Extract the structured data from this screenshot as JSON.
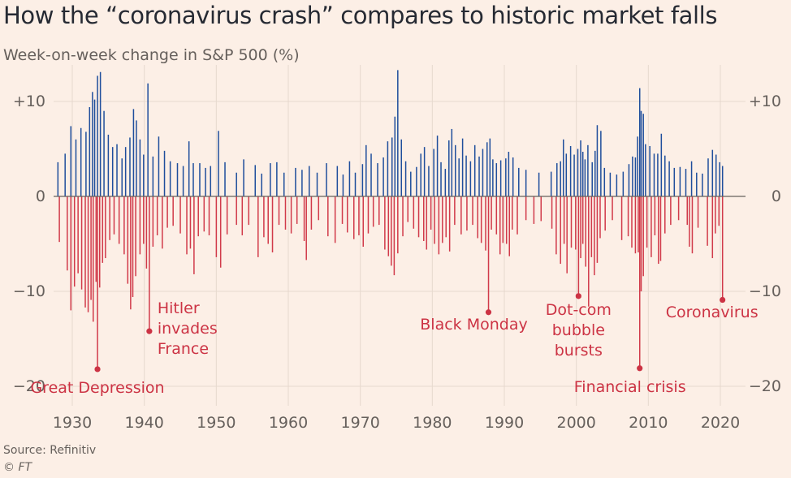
{
  "title": "How the “coronavirus crash” compares to historic market falls",
  "subtitle": "Week-on-week change in S&P 500 (%)",
  "source": "Source: Refinitiv",
  "credit": "© FT",
  "colors": {
    "background": "#fcefe6",
    "positive": "#1f4e9c",
    "negative": "#d13a4a",
    "annotation": "#cc3344",
    "grid": "#e6d9ce",
    "axis": "#66605c"
  },
  "chart_data": {
    "type": "bar",
    "xlim": [
      1927,
      2022
    ],
    "ylim": [
      -22,
      14
    ],
    "x_ticks": [
      1930,
      1940,
      1950,
      1960,
      1970,
      1980,
      1990,
      2000,
      2010,
      2020
    ],
    "x_tick_labels": [
      "1930",
      "1940",
      "1950",
      "1960",
      "1970",
      "1980",
      "1990",
      "2000",
      "2010",
      "2020"
    ],
    "y_ticks": [
      10,
      0,
      -10,
      -20
    ],
    "y_tick_labels": [
      "+10",
      "0",
      "−10",
      "−20"
    ],
    "grid": true,
    "series": [
      {
        "color": "positive",
        "values": [
          [
            1928.0,
            3.6
          ],
          [
            1929.0,
            4.5
          ],
          [
            1929.8,
            7.4
          ],
          [
            1930.5,
            6.0
          ],
          [
            1931.2,
            7.2
          ],
          [
            1931.9,
            6.8
          ],
          [
            1932.4,
            9.4
          ],
          [
            1932.8,
            11.0
          ],
          [
            1933.1,
            10.2
          ],
          [
            1933.5,
            12.7
          ],
          [
            1933.9,
            13.1
          ],
          [
            1934.4,
            9.0
          ],
          [
            1935.0,
            6.5
          ],
          [
            1935.6,
            5.2
          ],
          [
            1936.2,
            5.5
          ],
          [
            1936.9,
            4.0
          ],
          [
            1937.4,
            5.2
          ],
          [
            1938.0,
            6.2
          ],
          [
            1938.5,
            9.2
          ],
          [
            1938.9,
            8.0
          ],
          [
            1939.4,
            6.0
          ],
          [
            1939.9,
            4.4
          ],
          [
            1940.5,
            11.9
          ],
          [
            1941.2,
            4.2
          ],
          [
            1942.0,
            6.3
          ],
          [
            1942.8,
            4.8
          ],
          [
            1943.6,
            3.7
          ],
          [
            1944.6,
            3.5
          ],
          [
            1945.4,
            3.2
          ],
          [
            1946.2,
            5.8
          ],
          [
            1946.8,
            3.5
          ],
          [
            1947.7,
            3.5
          ],
          [
            1948.5,
            3.0
          ],
          [
            1949.2,
            3.2
          ],
          [
            1950.3,
            6.9
          ],
          [
            1951.2,
            3.6
          ],
          [
            1952.8,
            2.5
          ],
          [
            1953.8,
            3.9
          ],
          [
            1955.4,
            3.3
          ],
          [
            1956.3,
            2.4
          ],
          [
            1957.5,
            3.5
          ],
          [
            1958.4,
            3.6
          ],
          [
            1959.4,
            2.5
          ],
          [
            1961.0,
            3.0
          ],
          [
            1961.9,
            2.8
          ],
          [
            1962.9,
            3.2
          ],
          [
            1964.0,
            2.5
          ],
          [
            1965.3,
            3.5
          ],
          [
            1966.8,
            3.2
          ],
          [
            1967.6,
            2.3
          ],
          [
            1968.5,
            3.7
          ],
          [
            1969.3,
            2.5
          ],
          [
            1970.3,
            3.4
          ],
          [
            1970.8,
            5.4
          ],
          [
            1971.5,
            4.5
          ],
          [
            1972.4,
            3.5
          ],
          [
            1973.2,
            4.1
          ],
          [
            1973.8,
            5.8
          ],
          [
            1974.4,
            6.2
          ],
          [
            1974.8,
            8.4
          ],
          [
            1975.2,
            13.3
          ],
          [
            1975.7,
            6.0
          ],
          [
            1976.3,
            3.7
          ],
          [
            1977.0,
            2.6
          ],
          [
            1977.8,
            3.1
          ],
          [
            1978.4,
            4.5
          ],
          [
            1978.9,
            5.2
          ],
          [
            1979.5,
            3.2
          ],
          [
            1980.2,
            5.0
          ],
          [
            1980.7,
            6.4
          ],
          [
            1981.2,
            3.6
          ],
          [
            1981.8,
            2.9
          ],
          [
            1982.3,
            5.9
          ],
          [
            1982.7,
            7.1
          ],
          [
            1983.2,
            5.4
          ],
          [
            1983.7,
            4.0
          ],
          [
            1984.2,
            6.1
          ],
          [
            1984.7,
            4.3
          ],
          [
            1985.3,
            3.7
          ],
          [
            1985.9,
            5.4
          ],
          [
            1986.5,
            4.2
          ],
          [
            1987.0,
            5.0
          ],
          [
            1987.6,
            5.7
          ],
          [
            1988.0,
            6.1
          ],
          [
            1988.4,
            3.9
          ],
          [
            1988.9,
            3.5
          ],
          [
            1989.5,
            3.8
          ],
          [
            1990.2,
            4.0
          ],
          [
            1990.6,
            4.7
          ],
          [
            1991.2,
            4.1
          ],
          [
            1992.0,
            3.0
          ],
          [
            1993.0,
            2.8
          ],
          [
            1994.8,
            2.5
          ],
          [
            1996.5,
            2.6
          ],
          [
            1997.3,
            3.5
          ],
          [
            1997.8,
            3.7
          ],
          [
            1998.2,
            6.0
          ],
          [
            1998.6,
            4.5
          ],
          [
            1999.2,
            5.3
          ],
          [
            1999.7,
            4.4
          ],
          [
            2000.2,
            5.0
          ],
          [
            2000.6,
            5.9
          ],
          [
            2000.9,
            4.7
          ],
          [
            2001.2,
            3.9
          ],
          [
            2001.6,
            5.4
          ],
          [
            2002.2,
            3.6
          ],
          [
            2002.6,
            4.8
          ],
          [
            2002.9,
            7.5
          ],
          [
            2003.4,
            6.9
          ],
          [
            2003.9,
            3.0
          ],
          [
            2004.7,
            2.5
          ],
          [
            2005.6,
            2.3
          ],
          [
            2006.5,
            2.6
          ],
          [
            2007.3,
            3.4
          ],
          [
            2007.8,
            4.2
          ],
          [
            2008.2,
            4.1
          ],
          [
            2008.5,
            6.3
          ],
          [
            2008.8,
            11.4
          ],
          [
            2009.0,
            9.0
          ],
          [
            2009.3,
            8.7
          ],
          [
            2009.6,
            5.5
          ],
          [
            2010.2,
            5.3
          ],
          [
            2010.8,
            4.5
          ],
          [
            2011.3,
            4.5
          ],
          [
            2011.8,
            6.6
          ],
          [
            2012.3,
            4.3
          ],
          [
            2012.9,
            3.7
          ],
          [
            2013.6,
            3.0
          ],
          [
            2014.4,
            3.1
          ],
          [
            2015.2,
            2.9
          ],
          [
            2016.0,
            3.7
          ],
          [
            2016.7,
            2.5
          ],
          [
            2017.5,
            2.4
          ],
          [
            2018.3,
            4.0
          ],
          [
            2018.9,
            4.9
          ],
          [
            2019.4,
            4.4
          ],
          [
            2019.9,
            3.6
          ],
          [
            2020.3,
            3.2
          ]
        ]
      },
      {
        "color": "negative",
        "values": [
          [
            1928.2,
            -4.8
          ],
          [
            1929.3,
            -7.8
          ],
          [
            1929.8,
            -12.0
          ],
          [
            1930.3,
            -9.5
          ],
          [
            1930.8,
            -8.1
          ],
          [
            1931.3,
            -9.8
          ],
          [
            1931.8,
            -11.7
          ],
          [
            1932.2,
            -12.2
          ],
          [
            1932.6,
            -10.9
          ],
          [
            1932.9,
            -13.2
          ],
          [
            1933.3,
            -9.0
          ],
          [
            1933.5,
            -18.2
          ],
          [
            1933.8,
            -9.6
          ],
          [
            1934.2,
            -7.0
          ],
          [
            1934.6,
            -6.5
          ],
          [
            1935.2,
            -4.6
          ],
          [
            1935.8,
            -4.0
          ],
          [
            1936.5,
            -5.0
          ],
          [
            1937.2,
            -6.1
          ],
          [
            1937.7,
            -9.2
          ],
          [
            1938.1,
            -11.9
          ],
          [
            1938.4,
            -10.6
          ],
          [
            1938.8,
            -8.4
          ],
          [
            1939.4,
            -6.1
          ],
          [
            1939.9,
            -5.0
          ],
          [
            1940.3,
            -7.6
          ],
          [
            1940.7,
            -14.2
          ],
          [
            1941.2,
            -5.3
          ],
          [
            1941.8,
            -4.1
          ],
          [
            1942.5,
            -5.5
          ],
          [
            1943.2,
            -3.3
          ],
          [
            1944.0,
            -3.1
          ],
          [
            1945.0,
            -3.9
          ],
          [
            1945.9,
            -6.1
          ],
          [
            1946.4,
            -5.5
          ],
          [
            1946.9,
            -8.2
          ],
          [
            1947.5,
            -4.2
          ],
          [
            1948.3,
            -3.7
          ],
          [
            1949.0,
            -4.1
          ],
          [
            1950.0,
            -6.4
          ],
          [
            1950.6,
            -7.5
          ],
          [
            1951.5,
            -4.0
          ],
          [
            1952.8,
            -3.0
          ],
          [
            1953.6,
            -4.1
          ],
          [
            1954.5,
            -3.0
          ],
          [
            1955.8,
            -6.4
          ],
          [
            1956.6,
            -4.3
          ],
          [
            1957.2,
            -5.0
          ],
          [
            1957.8,
            -5.9
          ],
          [
            1958.7,
            -3.0
          ],
          [
            1959.6,
            -3.5
          ],
          [
            1960.4,
            -3.9
          ],
          [
            1961.2,
            -2.9
          ],
          [
            1962.2,
            -4.7
          ],
          [
            1962.5,
            -6.7
          ],
          [
            1963.2,
            -3.5
          ],
          [
            1964.2,
            -2.5
          ],
          [
            1965.5,
            -4.2
          ],
          [
            1966.5,
            -4.9
          ],
          [
            1967.5,
            -2.9
          ],
          [
            1968.2,
            -3.8
          ],
          [
            1969.1,
            -4.5
          ],
          [
            1969.8,
            -4.1
          ],
          [
            1970.4,
            -5.3
          ],
          [
            1971.1,
            -3.9
          ],
          [
            1971.8,
            -3.2
          ],
          [
            1972.6,
            -3.0
          ],
          [
            1973.4,
            -5.6
          ],
          [
            1973.9,
            -6.3
          ],
          [
            1974.3,
            -7.3
          ],
          [
            1974.7,
            -8.3
          ],
          [
            1975.2,
            -6.0
          ],
          [
            1975.9,
            -4.2
          ],
          [
            1976.6,
            -2.7
          ],
          [
            1977.4,
            -3.4
          ],
          [
            1978.1,
            -4.3
          ],
          [
            1978.8,
            -4.7
          ],
          [
            1979.2,
            -5.6
          ],
          [
            1979.8,
            -3.5
          ],
          [
            1980.3,
            -5.0
          ],
          [
            1980.9,
            -6.1
          ],
          [
            1981.4,
            -4.9
          ],
          [
            1981.9,
            -4.3
          ],
          [
            1982.4,
            -5.8
          ],
          [
            1983.1,
            -3.0
          ],
          [
            1984.0,
            -4.0
          ],
          [
            1984.8,
            -3.6
          ],
          [
            1985.6,
            -3.0
          ],
          [
            1986.3,
            -4.4
          ],
          [
            1986.8,
            -4.9
          ],
          [
            1987.4,
            -5.7
          ],
          [
            1987.8,
            -12.2
          ],
          [
            1988.2,
            -3.5
          ],
          [
            1988.9,
            -4.0
          ],
          [
            1989.4,
            -6.1
          ],
          [
            1989.8,
            -4.9
          ],
          [
            1990.3,
            -5.0
          ],
          [
            1990.7,
            -6.3
          ],
          [
            1991.1,
            -3.5
          ],
          [
            1991.8,
            -4.0
          ],
          [
            1993.0,
            -2.5
          ],
          [
            1994.1,
            -2.9
          ],
          [
            1995.1,
            -2.6
          ],
          [
            1996.6,
            -3.4
          ],
          [
            1997.2,
            -6.1
          ],
          [
            1997.8,
            -7.1
          ],
          [
            1998.3,
            -5.0
          ],
          [
            1998.7,
            -8.1
          ],
          [
            1999.3,
            -5.4
          ],
          [
            1999.9,
            -5.6
          ],
          [
            2000.3,
            -10.5
          ],
          [
            2000.6,
            -6.5
          ],
          [
            2000.9,
            -5.0
          ],
          [
            2001.3,
            -7.4
          ],
          [
            2001.7,
            -11.6
          ],
          [
            2002.1,
            -6.4
          ],
          [
            2002.5,
            -8.3
          ],
          [
            2002.9,
            -7.0
          ],
          [
            2003.3,
            -4.4
          ],
          [
            2004.0,
            -3.6
          ],
          [
            2005.0,
            -2.5
          ],
          [
            2006.3,
            -4.6
          ],
          [
            2007.2,
            -4.2
          ],
          [
            2007.7,
            -5.4
          ],
          [
            2008.2,
            -6.0
          ],
          [
            2008.6,
            -5.9
          ],
          [
            2008.8,
            -18.1
          ],
          [
            2009.0,
            -10.0
          ],
          [
            2009.3,
            -8.4
          ],
          [
            2009.8,
            -5.4
          ],
          [
            2010.4,
            -6.4
          ],
          [
            2010.9,
            -4.1
          ],
          [
            2011.4,
            -7.1
          ],
          [
            2011.7,
            -6.8
          ],
          [
            2012.3,
            -3.9
          ],
          [
            2013.1,
            -3.0
          ],
          [
            2014.2,
            -2.5
          ],
          [
            2015.4,
            -3.0
          ],
          [
            2015.7,
            -5.3
          ],
          [
            2016.1,
            -6.0
          ],
          [
            2016.9,
            -3.3
          ],
          [
            2018.2,
            -5.2
          ],
          [
            2018.9,
            -6.5
          ],
          [
            2019.3,
            -3.9
          ],
          [
            2019.8,
            -3.1
          ],
          [
            2020.3,
            -10.9
          ]
        ]
      }
    ],
    "annotations": [
      {
        "lines": [
          "Great Depression"
        ],
        "x": 1933.5,
        "y": -18.2
      },
      {
        "lines": [
          "Hitler",
          "invades",
          "France"
        ],
        "x": 1940.7,
        "y": -14.2
      },
      {
        "lines": [
          "Black Monday"
        ],
        "x": 1987.8,
        "y": -12.2
      },
      {
        "lines": [
          "Dot-com",
          "bubble",
          "bursts"
        ],
        "x": 2000.3,
        "y": -10.5
      },
      {
        "lines": [
          "Financial crisis"
        ],
        "x": 2008.8,
        "y": -18.1
      },
      {
        "lines": [
          "Coronavirus"
        ],
        "x": 2020.3,
        "y": -10.9
      }
    ]
  }
}
